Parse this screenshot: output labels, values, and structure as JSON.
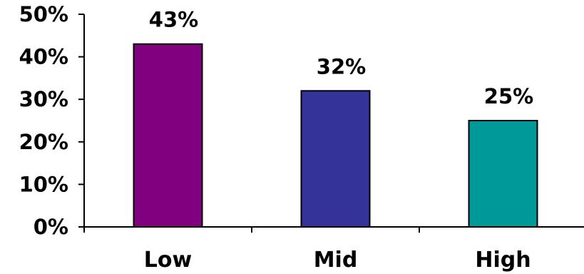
{
  "chart_data": {
    "type": "bar",
    "title": "",
    "xlabel": "",
    "ylabel": "",
    "categories": [
      "Low",
      "Mid",
      "High"
    ],
    "values": [
      43,
      32,
      25
    ],
    "data_labels": [
      "43%",
      "32%",
      "25%"
    ],
    "bar_colors": [
      "#800080",
      "#333399",
      "#009999"
    ],
    "ylim": [
      0,
      50
    ],
    "yticks": [
      0,
      10,
      20,
      30,
      40,
      50
    ],
    "ytick_labels": [
      "0%",
      "10%",
      "20%",
      "30%",
      "40%",
      "50%"
    ],
    "grid": false,
    "legend": "none"
  }
}
